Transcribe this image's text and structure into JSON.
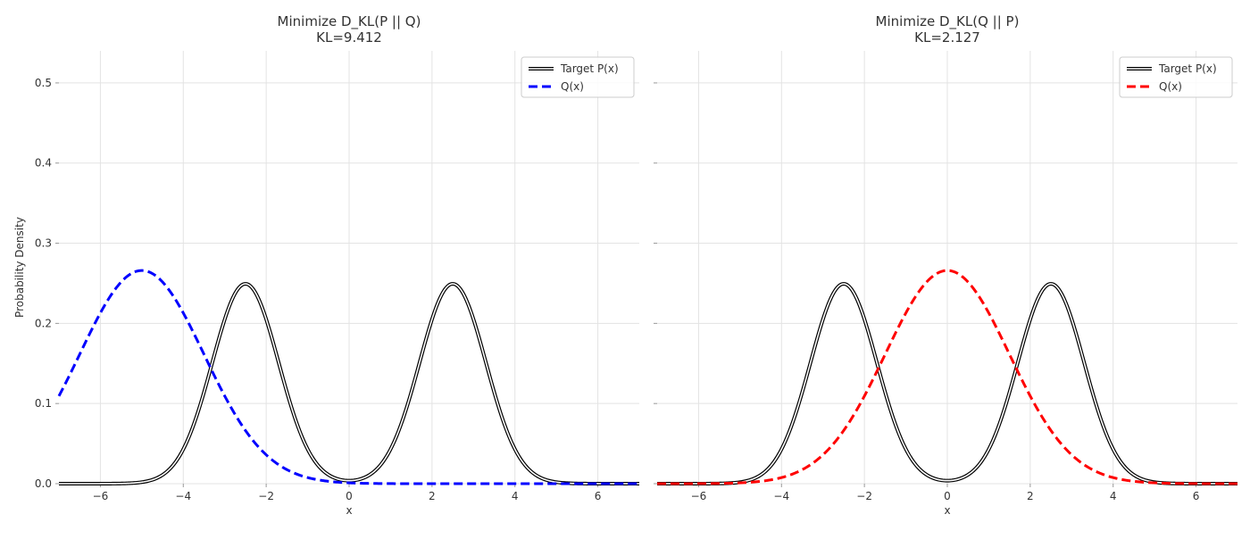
{
  "chart_data": [
    {
      "type": "line",
      "title": "Minimize D_KL(P || Q)",
      "subtitle": "KL=9.412",
      "xlabel": "x",
      "ylabel": "Probability Density",
      "xlim": [
        -7,
        7
      ],
      "ylim": [
        0,
        0.54
      ],
      "xticks": [
        -6,
        -4,
        -2,
        0,
        2,
        4,
        6
      ],
      "xtick_labels": [
        "−6",
        "−4",
        "−2",
        "0",
        "2",
        "4",
        "6"
      ],
      "yticks": [
        0.0,
        0.1,
        0.2,
        0.3,
        0.4,
        0.5
      ],
      "ytick_labels": [
        "0.0",
        "0.1",
        "0.2",
        "0.3",
        "0.4",
        "0.5"
      ],
      "grid": true,
      "legend_position": "top-right",
      "target": {
        "name": "Target P(x)",
        "color": "#000000",
        "style": "double-line",
        "components": [
          {
            "weight": 0.5,
            "mean": -2.5,
            "std": 0.8
          },
          {
            "weight": 0.5,
            "mean": 2.5,
            "std": 0.8
          }
        ]
      },
      "approx": {
        "name": "Q(x)",
        "color": "#0000ff",
        "style": "dashed",
        "mean": -5.0,
        "std": 1.5
      }
    },
    {
      "type": "line",
      "title": "Minimize D_KL(Q || P)",
      "subtitle": "KL=2.127",
      "xlabel": "x",
      "ylabel": "",
      "xlim": [
        -7,
        7
      ],
      "ylim": [
        0,
        0.54
      ],
      "xticks": [
        -6,
        -4,
        -2,
        0,
        2,
        4,
        6
      ],
      "xtick_labels": [
        "−6",
        "−4",
        "−2",
        "0",
        "2",
        "4",
        "6"
      ],
      "yticks": [
        0.0,
        0.1,
        0.2,
        0.3,
        0.4,
        0.5
      ],
      "ytick_labels": [],
      "grid": true,
      "legend_position": "top-right",
      "target": {
        "name": "Target P(x)",
        "color": "#000000",
        "style": "double-line",
        "components": [
          {
            "weight": 0.5,
            "mean": -2.5,
            "std": 0.8
          },
          {
            "weight": 0.5,
            "mean": 2.5,
            "std": 0.8
          }
        ]
      },
      "approx": {
        "name": "Q(x)",
        "color": "#ff0000",
        "style": "dashed",
        "mean": 0.0,
        "std": 1.5
      }
    }
  ]
}
